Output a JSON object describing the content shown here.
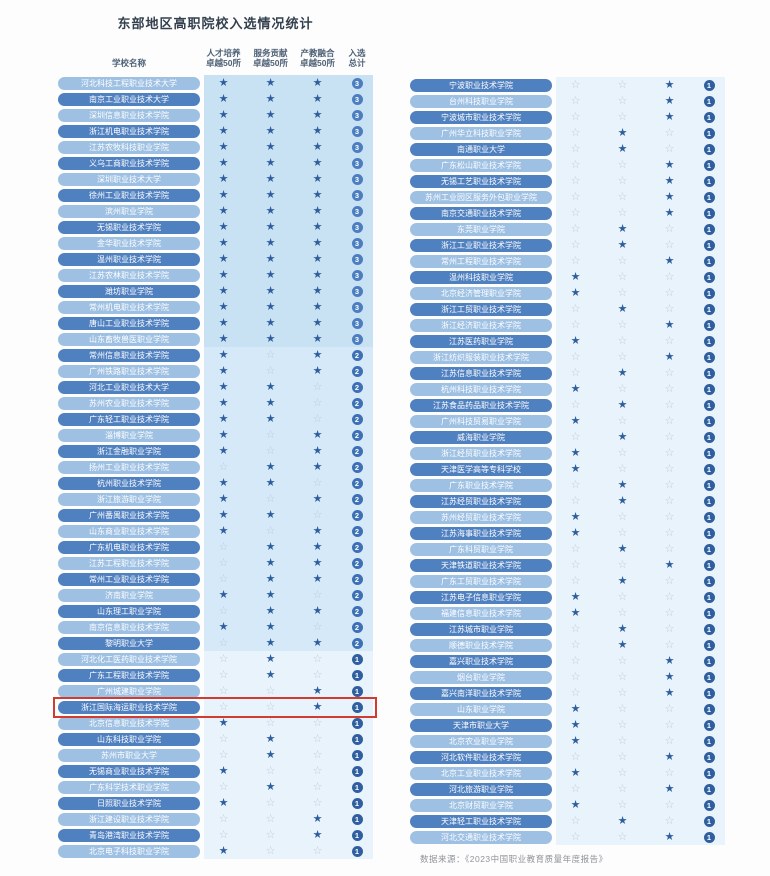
{
  "title": "东部地区高职院校入选情况统计",
  "header": {
    "school": "学校名称",
    "col1": "人才培养\n卓越50所",
    "col2": "服务贡献\n卓越50所",
    "col3": "产教融合\n卓越50所",
    "total": "入选\n总计"
  },
  "source_note": "数据来源：《2023中国职业教育质量年度报告》",
  "icons": {
    "star_filled": "★",
    "star_empty": "☆"
  },
  "colors": {
    "pill_dark": "#4f80c0",
    "pill_light": "#9dc0e3",
    "star_filled": "#2d5e9e",
    "star_empty": "#bccbdb",
    "band_level3": "#c8e1f3",
    "band_level2": "#d5e9f8",
    "band_level1": "#e9f3fb",
    "badge_3": "#4b7ec1",
    "badge_2": "#3e70b5",
    "badge_1": "#305f9f",
    "highlight_red": "#d23b2f"
  },
  "highlight": {
    "table": "left",
    "row_index": 39,
    "school": "浙江国际海运职业技术学院"
  },
  "chart_data": {
    "type": "table",
    "columns": [
      "学校名称",
      "人才培养卓越50所",
      "服务贡献卓越50所",
      "产教融合卓越50所",
      "入选总计"
    ],
    "legend": "stars array = [人才培养, 服务贡献, 产教融合]; 1=filled star, 0=empty star",
    "left_rows": [
      {
        "school": "河北科技工程职业技术大学",
        "stars": [
          1,
          1,
          1
        ],
        "total": 3
      },
      {
        "school": "南京工业职业技术大学",
        "stars": [
          1,
          1,
          1
        ],
        "total": 3
      },
      {
        "school": "深圳信息职业技术学院",
        "stars": [
          1,
          1,
          1
        ],
        "total": 3
      },
      {
        "school": "浙江机电职业技术学院",
        "stars": [
          1,
          1,
          1
        ],
        "total": 3
      },
      {
        "school": "江苏农牧科技职业学院",
        "stars": [
          1,
          1,
          1
        ],
        "total": 3
      },
      {
        "school": "义乌工商职业技术学院",
        "stars": [
          1,
          1,
          1
        ],
        "total": 3
      },
      {
        "school": "深圳职业技术大学",
        "stars": [
          1,
          1,
          1
        ],
        "total": 3
      },
      {
        "school": "徐州工业职业技术学院",
        "stars": [
          1,
          1,
          1
        ],
        "total": 3
      },
      {
        "school": "滨州职业学院",
        "stars": [
          1,
          1,
          1
        ],
        "total": 3
      },
      {
        "school": "无锡职业技术学院",
        "stars": [
          1,
          1,
          1
        ],
        "total": 3
      },
      {
        "school": "金华职业技术学院",
        "stars": [
          1,
          1,
          1
        ],
        "total": 3
      },
      {
        "school": "温州职业技术学院",
        "stars": [
          1,
          1,
          1
        ],
        "total": 3
      },
      {
        "school": "江苏农林职业技术学院",
        "stars": [
          1,
          1,
          1
        ],
        "total": 3
      },
      {
        "school": "潍坊职业学院",
        "stars": [
          1,
          1,
          1
        ],
        "total": 3
      },
      {
        "school": "常州机电职业技术学院",
        "stars": [
          1,
          1,
          1
        ],
        "total": 3
      },
      {
        "school": "唐山工业职业技术学院",
        "stars": [
          1,
          1,
          1
        ],
        "total": 3
      },
      {
        "school": "山东畜牧兽医职业学院",
        "stars": [
          1,
          1,
          1
        ],
        "total": 3
      },
      {
        "school": "常州信息职业技术学院",
        "stars": [
          1,
          0,
          1
        ],
        "total": 2
      },
      {
        "school": "广州铁路职业技术学院",
        "stars": [
          1,
          0,
          1
        ],
        "total": 2
      },
      {
        "school": "河北工业职业技术大学",
        "stars": [
          1,
          1,
          0
        ],
        "total": 2
      },
      {
        "school": "苏州农业职业技术学院",
        "stars": [
          1,
          1,
          0
        ],
        "total": 2
      },
      {
        "school": "广东轻工职业技术学院",
        "stars": [
          1,
          1,
          0
        ],
        "total": 2
      },
      {
        "school": "淄博职业学院",
        "stars": [
          1,
          0,
          1
        ],
        "total": 2
      },
      {
        "school": "浙江金融职业学院",
        "stars": [
          1,
          0,
          1
        ],
        "total": 2
      },
      {
        "school": "扬州工业职业技术学院",
        "stars": [
          0,
          1,
          1
        ],
        "total": 2
      },
      {
        "school": "杭州职业技术学院",
        "stars": [
          1,
          1,
          0
        ],
        "total": 2
      },
      {
        "school": "浙江旅游职业学院",
        "stars": [
          1,
          0,
          1
        ],
        "total": 2
      },
      {
        "school": "广州番禺职业技术学院",
        "stars": [
          1,
          1,
          0
        ],
        "total": 2
      },
      {
        "school": "山东商业职业技术学院",
        "stars": [
          1,
          0,
          1
        ],
        "total": 2
      },
      {
        "school": "广东机电职业技术学院",
        "stars": [
          0,
          1,
          1
        ],
        "total": 2
      },
      {
        "school": "江苏工程职业技术学院",
        "stars": [
          0,
          1,
          1
        ],
        "total": 2
      },
      {
        "school": "常州工业职业技术学院",
        "stars": [
          0,
          1,
          1
        ],
        "total": 2
      },
      {
        "school": "济南职业学院",
        "stars": [
          1,
          1,
          0
        ],
        "total": 2
      },
      {
        "school": "山东理工职业学院",
        "stars": [
          0,
          1,
          1
        ],
        "total": 2
      },
      {
        "school": "南京信息职业技术学院",
        "stars": [
          1,
          1,
          0
        ],
        "total": 2
      },
      {
        "school": "黎明职业大学",
        "stars": [
          0,
          1,
          1
        ],
        "total": 2
      },
      {
        "school": "河北化工医药职业技术学院",
        "stars": [
          0,
          1,
          0
        ],
        "total": 1
      },
      {
        "school": "广东工程职业技术学院",
        "stars": [
          0,
          1,
          0
        ],
        "total": 1
      },
      {
        "school": "广州城建职业学院",
        "stars": [
          0,
          0,
          1
        ],
        "total": 1
      },
      {
        "school": "浙江国际海运职业技术学院",
        "stars": [
          0,
          0,
          1
        ],
        "total": 1
      },
      {
        "school": "北京信息职业技术学院",
        "stars": [
          1,
          0,
          0
        ],
        "total": 1
      },
      {
        "school": "山东科技职业学院",
        "stars": [
          0,
          1,
          0
        ],
        "total": 1
      },
      {
        "school": "苏州市职业大学",
        "stars": [
          0,
          1,
          0
        ],
        "total": 1
      },
      {
        "school": "无锡商业职业技术学院",
        "stars": [
          1,
          0,
          0
        ],
        "total": 1
      },
      {
        "school": "广东科学技术职业学院",
        "stars": [
          0,
          1,
          0
        ],
        "total": 1
      },
      {
        "school": "日照职业技术学院",
        "stars": [
          1,
          0,
          0
        ],
        "total": 1
      },
      {
        "school": "浙江建设职业技术学院",
        "stars": [
          0,
          0,
          1
        ],
        "total": 1
      },
      {
        "school": "青岛港湾职业技术学院",
        "stars": [
          0,
          0,
          1
        ],
        "total": 1
      },
      {
        "school": "北京电子科技职业学院",
        "stars": [
          1,
          0,
          0
        ],
        "total": 1
      }
    ],
    "right_rows": [
      {
        "school": "宁波职业技术学院",
        "stars": [
          0,
          0,
          1
        ],
        "total": 1
      },
      {
        "school": "台州科技职业学院",
        "stars": [
          0,
          0,
          1
        ],
        "total": 1
      },
      {
        "school": "宁波城市职业技术学院",
        "stars": [
          0,
          0,
          1
        ],
        "total": 1
      },
      {
        "school": "广州华立科技职业学院",
        "stars": [
          0,
          1,
          0
        ],
        "total": 1
      },
      {
        "school": "南通职业大学",
        "stars": [
          0,
          1,
          0
        ],
        "total": 1
      },
      {
        "school": "广东松山职业技术学院",
        "stars": [
          0,
          0,
          1
        ],
        "total": 1
      },
      {
        "school": "无锡工艺职业技术学院",
        "stars": [
          0,
          0,
          1
        ],
        "total": 1
      },
      {
        "school": "苏州工业园区服务外包职业学院",
        "stars": [
          0,
          0,
          1
        ],
        "total": 1
      },
      {
        "school": "南京交通职业技术学院",
        "stars": [
          0,
          0,
          1
        ],
        "total": 1
      },
      {
        "school": "东莞职业学院",
        "stars": [
          0,
          1,
          0
        ],
        "total": 1
      },
      {
        "school": "浙江工业职业技术学院",
        "stars": [
          0,
          1,
          0
        ],
        "total": 1
      },
      {
        "school": "常州工程职业技术学院",
        "stars": [
          0,
          0,
          1
        ],
        "total": 1
      },
      {
        "school": "温州科技职业学院",
        "stars": [
          1,
          0,
          0
        ],
        "total": 1
      },
      {
        "school": "北京经济管理职业学院",
        "stars": [
          1,
          0,
          0
        ],
        "total": 1
      },
      {
        "school": "浙江工贸职业技术学院",
        "stars": [
          0,
          1,
          0
        ],
        "total": 1
      },
      {
        "school": "浙江经济职业技术学院",
        "stars": [
          0,
          0,
          1
        ],
        "total": 1
      },
      {
        "school": "江苏医药职业学院",
        "stars": [
          1,
          0,
          0
        ],
        "total": 1
      },
      {
        "school": "浙江纺织服装职业技术学院",
        "stars": [
          0,
          0,
          1
        ],
        "total": 1
      },
      {
        "school": "江苏信息职业技术学院",
        "stars": [
          0,
          1,
          0
        ],
        "total": 1
      },
      {
        "school": "杭州科技职业技术学院",
        "stars": [
          1,
          0,
          0
        ],
        "total": 1
      },
      {
        "school": "江苏食品药品职业技术学院",
        "stars": [
          0,
          1,
          0
        ],
        "total": 1
      },
      {
        "school": "广州科技贸易职业学院",
        "stars": [
          1,
          0,
          0
        ],
        "total": 1
      },
      {
        "school": "威海职业学院",
        "stars": [
          0,
          1,
          0
        ],
        "total": 1
      },
      {
        "school": "浙江经贸职业技术学院",
        "stars": [
          1,
          0,
          0
        ],
        "total": 1
      },
      {
        "school": "天津医学高等专科学校",
        "stars": [
          1,
          0,
          0
        ],
        "total": 1
      },
      {
        "school": "广东职业技术学院",
        "stars": [
          0,
          1,
          0
        ],
        "total": 1
      },
      {
        "school": "江苏经贸职业技术学院",
        "stars": [
          0,
          1,
          0
        ],
        "total": 1
      },
      {
        "school": "苏州经贸职业技术学院",
        "stars": [
          1,
          0,
          0
        ],
        "total": 1
      },
      {
        "school": "江苏海事职业技术学院",
        "stars": [
          1,
          0,
          0
        ],
        "total": 1
      },
      {
        "school": "广东科贸职业学院",
        "stars": [
          0,
          1,
          0
        ],
        "total": 1
      },
      {
        "school": "天津铁道职业技术学院",
        "stars": [
          0,
          0,
          1
        ],
        "total": 1
      },
      {
        "school": "广东工贸职业技术学院",
        "stars": [
          0,
          1,
          0
        ],
        "total": 1
      },
      {
        "school": "江苏电子信息职业学院",
        "stars": [
          1,
          0,
          0
        ],
        "total": 1
      },
      {
        "school": "福建信息职业技术学院",
        "stars": [
          1,
          0,
          0
        ],
        "total": 1
      },
      {
        "school": "江苏城市职业学院",
        "stars": [
          0,
          1,
          0
        ],
        "total": 1
      },
      {
        "school": "顺德职业技术学院",
        "stars": [
          0,
          1,
          0
        ],
        "total": 1
      },
      {
        "school": "嘉兴职业技术学院",
        "stars": [
          0,
          0,
          1
        ],
        "total": 1
      },
      {
        "school": "烟台职业学院",
        "stars": [
          0,
          0,
          1
        ],
        "total": 1
      },
      {
        "school": "嘉兴南洋职业技术学院",
        "stars": [
          0,
          0,
          1
        ],
        "total": 1
      },
      {
        "school": "山东职业学院",
        "stars": [
          1,
          0,
          0
        ],
        "total": 1
      },
      {
        "school": "天津市职业大学",
        "stars": [
          1,
          0,
          0
        ],
        "total": 1
      },
      {
        "school": "北京农业职业学院",
        "stars": [
          1,
          0,
          0
        ],
        "total": 1
      },
      {
        "school": "河北软件职业技术学院",
        "stars": [
          0,
          0,
          1
        ],
        "total": 1
      },
      {
        "school": "北京工业职业技术学院",
        "stars": [
          1,
          0,
          0
        ],
        "total": 1
      },
      {
        "school": "河北旅游职业学院",
        "stars": [
          0,
          0,
          1
        ],
        "total": 1
      },
      {
        "school": "北京财贸职业学院",
        "stars": [
          1,
          0,
          0
        ],
        "total": 1
      },
      {
        "school": "天津轻工职业技术学院",
        "stars": [
          0,
          1,
          0
        ],
        "total": 1
      },
      {
        "school": "河北交通职业技术学院",
        "stars": [
          0,
          0,
          1
        ],
        "total": 1
      }
    ]
  }
}
